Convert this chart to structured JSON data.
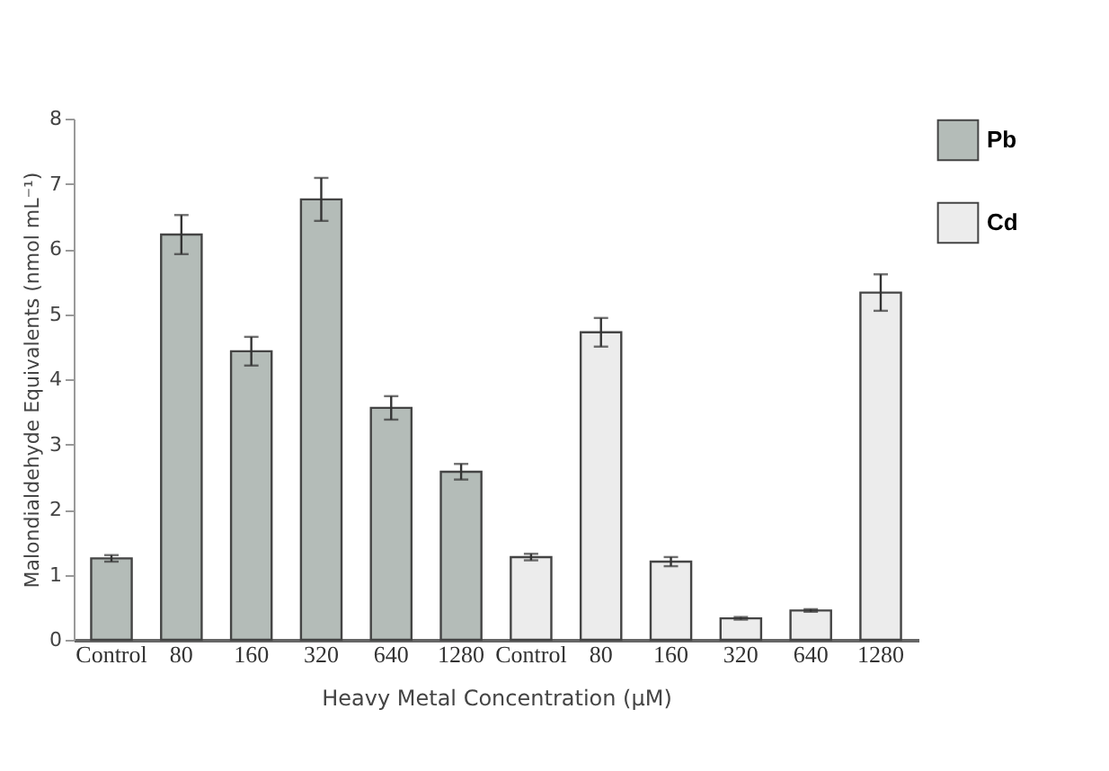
{
  "chart_data": {
    "type": "bar",
    "xlabel": "Heavy Metal Concentration (µM)",
    "ylabel": "Malondialdehyde Equivalents (nmol mL⁻¹)",
    "categories": [
      "Control",
      "80",
      "160",
      "320",
      "640",
      "1280",
      "Control",
      "80",
      "160",
      "320",
      "640",
      "1280"
    ],
    "series": [
      {
        "name": "Pb",
        "color": "#b4bcb8",
        "values": [
          1.25,
          6.22,
          4.43,
          6.76,
          3.56,
          2.58,
          null,
          null,
          null,
          null,
          null,
          null
        ],
        "errors": [
          0.05,
          0.3,
          0.22,
          0.33,
          0.18,
          0.12,
          null,
          null,
          null,
          null,
          null,
          null
        ]
      },
      {
        "name": "Cd",
        "color": "#ececec",
        "values": [
          null,
          null,
          null,
          null,
          null,
          null,
          1.27,
          4.72,
          1.2,
          0.33,
          0.45,
          5.33
        ],
        "errors": [
          null,
          null,
          null,
          null,
          null,
          null,
          0.05,
          0.22,
          0.07,
          0.02,
          0.02,
          0.28
        ]
      }
    ],
    "ylim": [
      0,
      8
    ],
    "yticks": [
      0,
      1,
      2,
      3,
      4,
      5,
      6,
      7,
      8
    ],
    "grid": false,
    "legend": "top right"
  }
}
